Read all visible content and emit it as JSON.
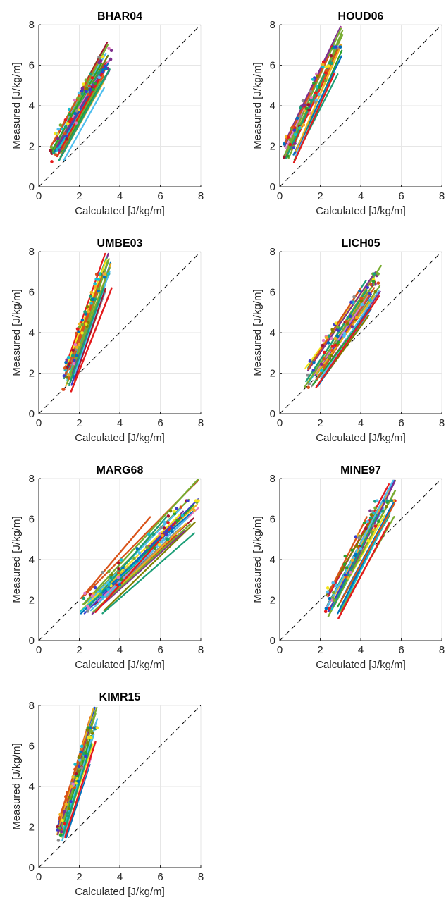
{
  "colors": {
    "series": [
      "#0072BD",
      "#D95319",
      "#EDB120",
      "#7E2F8E",
      "#77AC30",
      "#4DBEEE",
      "#A2142F",
      "#E41A1C",
      "#808000",
      "#8C8C8C",
      "#1B9E77",
      "#F5E51B",
      "#3A3ACB",
      "#2CA02C",
      "#17BECF",
      "#E377C2"
    ],
    "identity": "#000000",
    "grid": "#E6E6E6",
    "axis": "#262626"
  },
  "chart_data": [
    {
      "type": "scatter",
      "title": "BHAR04",
      "xlabel": "Calculated [J/kg/m]",
      "ylabel": "Measured [J/kg/m]",
      "xlim": [
        0,
        8
      ],
      "ylim": [
        0,
        8
      ],
      "xticks": [
        "0",
        "2",
        "4",
        "6",
        "8"
      ],
      "yticks": [
        "0",
        "2",
        "4",
        "6",
        "8"
      ],
      "grid": true,
      "identity_line": true,
      "calc_range": [
        0.55,
        3.6
      ],
      "fit_slope": 1.78,
      "fit_lines": [
        {
          "x": [
            0.6,
            3.0
          ],
          "y": [
            2.0,
            6.3
          ]
        },
        {
          "x": [
            0.7,
            3.4
          ],
          "y": [
            1.8,
            7.0
          ]
        },
        {
          "x": [
            0.9,
            3.3
          ],
          "y": [
            1.5,
            5.9
          ]
        },
        {
          "x": [
            1.0,
            3.5
          ],
          "y": [
            1.3,
            5.8
          ]
        },
        {
          "x": [
            0.6,
            3.1
          ],
          "y": [
            1.7,
            6.1
          ]
        }
      ]
    },
    {
      "type": "scatter",
      "title": "HOUD06",
      "xlabel": "Calculated [J/kg/m]",
      "ylabel": "Measured [J/kg/m]",
      "xlim": [
        0,
        8
      ],
      "ylim": [
        0,
        8
      ],
      "xticks": [
        "0",
        "2",
        "4",
        "6",
        "8"
      ],
      "yticks": [
        "0",
        "2",
        "4",
        "6",
        "8"
      ],
      "grid": true,
      "identity_line": true,
      "calc_range": [
        0.2,
        3.1
      ],
      "fit_slope": 2.2,
      "fit_lines": [
        {
          "x": [
            0.3,
            2.4
          ],
          "y": [
            2.2,
            6.4
          ]
        },
        {
          "x": [
            0.4,
            3.1
          ],
          "y": [
            1.8,
            7.5
          ]
        },
        {
          "x": [
            0.7,
            2.7
          ],
          "y": [
            1.2,
            5.6
          ]
        },
        {
          "x": [
            0.3,
            2.5
          ],
          "y": [
            1.4,
            6.2
          ]
        }
      ]
    },
    {
      "type": "scatter",
      "title": "UMBE03",
      "xlabel": "Calculated [J/kg/m]",
      "ylabel": "Measured [J/kg/m]",
      "xlim": [
        0,
        8
      ],
      "ylim": [
        0,
        8
      ],
      "xticks": [
        "0",
        "2",
        "4",
        "6",
        "8"
      ],
      "yticks": [
        "0",
        "2",
        "4",
        "6",
        "8"
      ],
      "grid": true,
      "identity_line": true,
      "calc_range": [
        1.2,
        3.6
      ],
      "fit_slope": 3.0,
      "fit_lines": [
        {
          "x": [
            1.3,
            3.0
          ],
          "y": [
            1.9,
            6.5
          ]
        },
        {
          "x": [
            1.4,
            3.5
          ],
          "y": [
            1.5,
            7.2
          ]
        },
        {
          "x": [
            1.6,
            3.6
          ],
          "y": [
            1.1,
            6.2
          ]
        },
        {
          "x": [
            1.5,
            3.2
          ],
          "y": [
            1.4,
            6.2
          ]
        }
      ]
    },
    {
      "type": "scatter",
      "title": "LICH05",
      "xlabel": "Calculated [J/kg/m]",
      "ylabel": "Measured [J/kg/m]",
      "xlim": [
        0,
        8
      ],
      "ylim": [
        0,
        8
      ],
      "xticks": [
        "0",
        "2",
        "4",
        "6",
        "8"
      ],
      "yticks": [
        "0",
        "2",
        "4",
        "6",
        "8"
      ],
      "grid": true,
      "identity_line": true,
      "calc_range": [
        1.2,
        5.0
      ],
      "fit_slope": 1.5,
      "fit_lines": [
        {
          "x": [
            1.4,
            4.0
          ],
          "y": [
            2.2,
            6.2
          ]
        },
        {
          "x": [
            1.6,
            5.0
          ],
          "y": [
            2.0,
            7.3
          ]
        },
        {
          "x": [
            1.8,
            4.9
          ],
          "y": [
            1.3,
            5.8
          ]
        },
        {
          "x": [
            1.3,
            4.3
          ],
          "y": [
            1.6,
            6.1
          ]
        }
      ]
    },
    {
      "type": "scatter",
      "title": "MARG68",
      "xlabel": "Calculated [J/kg/m]",
      "ylabel": "Measured [J/kg/m]",
      "xlim": [
        0,
        8
      ],
      "ylim": [
        0,
        8
      ],
      "xticks": [
        "0",
        "2",
        "4",
        "6",
        "8"
      ],
      "yticks": [
        "0",
        "2",
        "4",
        "6",
        "8"
      ],
      "grid": true,
      "identity_line": true,
      "calc_range": [
        2.0,
        7.9
      ],
      "fit_slope": 0.98,
      "fit_lines": [
        {
          "x": [
            2.1,
            5.5
          ],
          "y": [
            2.1,
            6.1
          ]
        },
        {
          "x": [
            2.2,
            7.9
          ],
          "y": [
            1.8,
            8.0
          ]
        },
        {
          "x": [
            2.8,
            6.9
          ],
          "y": [
            1.4,
            6.0
          ]
        },
        {
          "x": [
            2.5,
            6.3
          ],
          "y": [
            1.7,
            6.1
          ]
        }
      ]
    },
    {
      "type": "scatter",
      "title": "MINE97",
      "xlabel": "Calculated [J/kg/m]",
      "ylabel": "Measured [J/kg/m]",
      "xlim": [
        0,
        8
      ],
      "ylim": [
        0,
        8
      ],
      "xticks": [
        "0",
        "2",
        "4",
        "6",
        "8"
      ],
      "yticks": [
        "0",
        "2",
        "4",
        "6",
        "8"
      ],
      "grid": true,
      "identity_line": true,
      "calc_range": [
        2.2,
        5.7
      ],
      "fit_slope": 1.95,
      "fit_lines": [
        {
          "x": [
            2.4,
            4.3
          ],
          "y": [
            2.3,
            6.1
          ]
        },
        {
          "x": [
            2.4,
            5.7
          ],
          "y": [
            1.2,
            7.4
          ]
        },
        {
          "x": [
            2.9,
            5.4
          ],
          "y": [
            1.1,
            5.8
          ]
        },
        {
          "x": [
            2.6,
            4.8
          ],
          "y": [
            1.6,
            6.2
          ]
        }
      ]
    },
    {
      "type": "scatter",
      "title": "KIMR15",
      "xlabel": "Calculated [J/kg/m]",
      "ylabel": "Measured [J/kg/m]",
      "xlim": [
        0,
        8
      ],
      "ylim": [
        0,
        8
      ],
      "xticks": [
        "0",
        "2",
        "4",
        "6",
        "8"
      ],
      "yticks": [
        "0",
        "2",
        "4",
        "6",
        "8"
      ],
      "grid": true,
      "identity_line": true,
      "calc_range": [
        0.9,
        2.9
      ],
      "fit_slope": 3.3,
      "fit_lines": [
        {
          "x": [
            1.0,
            2.3
          ],
          "y": [
            2.4,
            6.3
          ]
        },
        {
          "x": [
            1.1,
            2.8
          ],
          "y": [
            1.9,
            7.6
          ]
        },
        {
          "x": [
            1.3,
            2.8
          ],
          "y": [
            1.5,
            6.2
          ]
        },
        {
          "x": [
            1.2,
            2.6
          ],
          "y": [
            1.6,
            6.1
          ]
        }
      ]
    }
  ]
}
